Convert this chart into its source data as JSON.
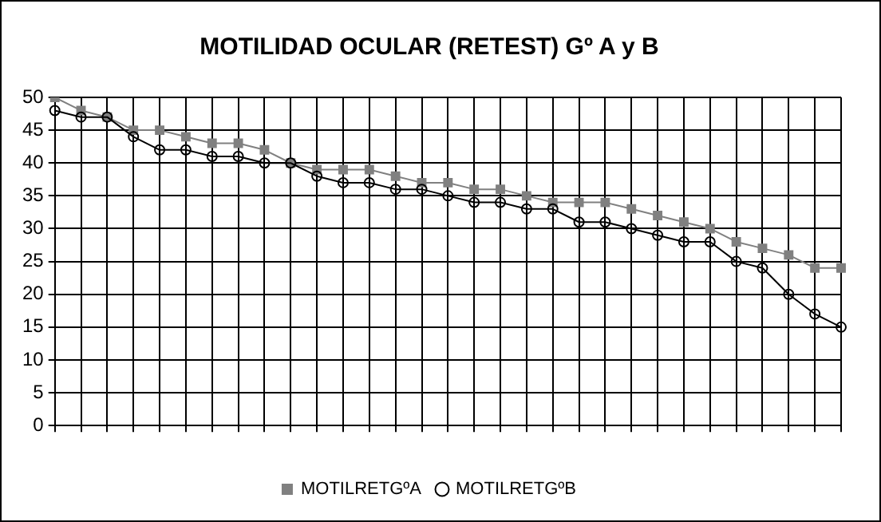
{
  "chart_data": {
    "type": "line",
    "title": "MOTILIDAD OCULAR (RETEST) Gº A y B",
    "categories": [
      null,
      null,
      null,
      null,
      null,
      null,
      null,
      null,
      null,
      null,
      null,
      null,
      null,
      null,
      null,
      null,
      null,
      null,
      null,
      null,
      null,
      null,
      null,
      null,
      null,
      null,
      null,
      null,
      null,
      null,
      null
    ],
    "series": [
      {
        "name": "MOTILRETGºA",
        "color": "#808080",
        "marker": "square",
        "values": [
          50,
          48,
          47,
          45,
          45,
          44,
          43,
          43,
          42,
          40,
          39,
          39,
          39,
          38,
          37,
          37,
          36,
          36,
          35,
          34,
          34,
          34,
          33,
          32,
          31,
          30,
          28,
          27,
          26,
          24,
          24
        ]
      },
      {
        "name": "MOTILRETGºB",
        "color": "#000000",
        "marker": "circle",
        "values": [
          48,
          47,
          47,
          44,
          42,
          42,
          41,
          41,
          40,
          40,
          38,
          37,
          37,
          36,
          36,
          35,
          34,
          34,
          33,
          33,
          31,
          31,
          30,
          29,
          28,
          28,
          25,
          24,
          20,
          17,
          15
        ]
      }
    ],
    "ylim": [
      0,
      50
    ],
    "yticks": [
      0,
      5,
      10,
      15,
      20,
      25,
      30,
      35,
      40,
      45,
      50
    ],
    "grid": true,
    "legend": "bottom"
  }
}
